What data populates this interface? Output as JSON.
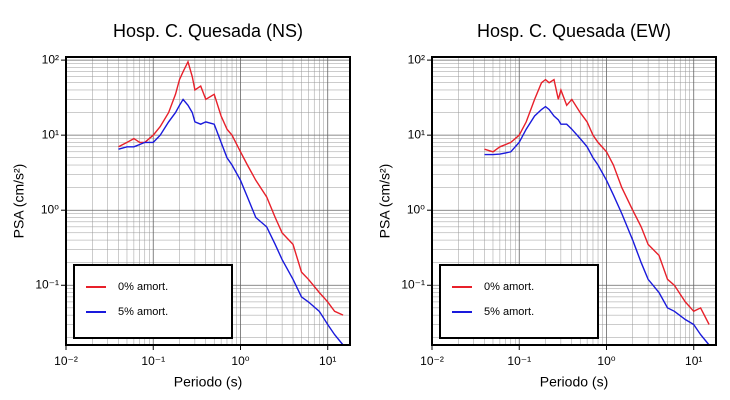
{
  "chart_data": [
    {
      "type": "line",
      "title": "Hosp. C. Quesada (NS)",
      "x_label": "Periodo (s)",
      "y_label": "PSA (cm/s²)",
      "x": [
        0.04,
        0.05,
        0.06,
        0.07,
        0.08,
        0.1,
        0.12,
        0.15,
        0.18,
        0.2,
        0.22,
        0.25,
        0.28,
        0.3,
        0.35,
        0.4,
        0.5,
        0.6,
        0.7,
        0.8,
        1.0,
        1.2,
        1.5,
        2,
        2.5,
        3,
        4,
        5,
        6,
        8,
        10,
        12,
        15
      ],
      "series": [
        {
          "name": "0% amort.",
          "color": "#e8202a",
          "values": [
            7,
            8,
            9,
            8,
            8,
            10,
            13,
            20,
            35,
            55,
            70,
            95,
            60,
            40,
            45,
            30,
            35,
            18,
            12,
            10,
            6,
            4,
            2.5,
            1.5,
            0.8,
            0.5,
            0.35,
            0.15,
            0.12,
            0.08,
            0.06,
            0.045,
            0.04
          ]
        },
        {
          "name": "5% amort.",
          "color": "#1a1adc",
          "values": [
            6.5,
            7,
            7,
            7.5,
            8,
            8,
            10,
            15,
            20,
            25,
            30,
            25,
            20,
            15,
            14,
            15,
            14,
            8,
            5,
            4,
            2.5,
            1.5,
            0.8,
            0.6,
            0.35,
            0.22,
            0.12,
            0.07,
            0.06,
            0.045,
            0.03,
            0.022,
            0.016
          ]
        }
      ],
      "log_x": true,
      "log_y": true,
      "grid": true,
      "minor_grid": true,
      "legend": "lower left",
      "xlim": [
        0.01,
        18
      ],
      "ylim": [
        0.016,
        110
      ],
      "xticks": [
        {
          "value": 0.01,
          "label": "10⁻²"
        },
        {
          "value": 0.1,
          "label": "10⁻¹"
        },
        {
          "value": 1,
          "label": "10⁰"
        },
        {
          "value": 10,
          "label": "10¹"
        }
      ],
      "yticks": [
        {
          "value": 0.1,
          "label": "10⁻¹"
        },
        {
          "value": 1,
          "label": "10⁰"
        },
        {
          "value": 10,
          "label": "10¹"
        },
        {
          "value": 100,
          "label": "10²"
        }
      ]
    },
    {
      "type": "line",
      "title": "Hosp. C. Quesada (EW)",
      "x_label": "Periodo (s)",
      "y_label": "PSA (cm/s²)",
      "x": [
        0.04,
        0.05,
        0.06,
        0.07,
        0.08,
        0.1,
        0.12,
        0.15,
        0.18,
        0.2,
        0.22,
        0.25,
        0.28,
        0.3,
        0.35,
        0.4,
        0.5,
        0.6,
        0.7,
        0.8,
        1.0,
        1.2,
        1.5,
        2,
        2.5,
        3,
        4,
        5,
        6,
        8,
        10,
        12,
        15
      ],
      "series": [
        {
          "name": "0% amort.",
          "color": "#e8202a",
          "values": [
            6.5,
            6,
            7,
            7.5,
            8,
            10,
            15,
            30,
            50,
            55,
            50,
            55,
            30,
            40,
            25,
            30,
            20,
            15,
            10,
            8,
            6,
            4,
            2,
            1,
            0.6,
            0.35,
            0.25,
            0.12,
            0.1,
            0.06,
            0.045,
            0.05,
            0.03
          ]
        },
        {
          "name": "5% amort.",
          "color": "#1a1adc",
          "values": [
            5.5,
            5.5,
            5.6,
            5.8,
            6,
            8,
            12,
            18,
            22,
            24,
            22,
            18,
            16,
            14,
            14,
            12,
            9,
            7,
            5,
            4,
            2.5,
            1.6,
            0.9,
            0.4,
            0.2,
            0.12,
            0.08,
            0.05,
            0.045,
            0.035,
            0.03,
            0.022,
            0.016
          ]
        }
      ],
      "log_x": true,
      "log_y": true,
      "grid": true,
      "minor_grid": true,
      "legend": "lower left",
      "xlim": [
        0.01,
        18
      ],
      "ylim": [
        0.016,
        110
      ],
      "xticks": [
        {
          "value": 0.01,
          "label": "10⁻²"
        },
        {
          "value": 0.1,
          "label": "10⁻¹"
        },
        {
          "value": 1,
          "label": "10⁰"
        },
        {
          "value": 10,
          "label": "10¹"
        }
      ],
      "yticks": [
        {
          "value": 0.1,
          "label": "10⁻¹"
        },
        {
          "value": 1,
          "label": "10⁰"
        },
        {
          "value": 10,
          "label": "10¹"
        },
        {
          "value": 100,
          "label": "10²"
        }
      ]
    }
  ]
}
